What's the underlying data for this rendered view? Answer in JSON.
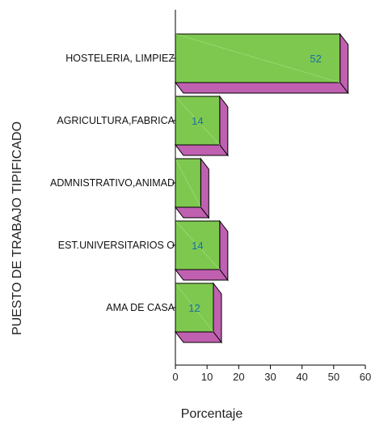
{
  "colors": {
    "bar_front": "#7ec850",
    "bar_side": "#c060b0",
    "value_label": "#1a6fa0",
    "axis": "#000000"
  },
  "chart_data": {
    "type": "bar",
    "orientation": "horizontal",
    "style": "3d",
    "categories": [
      "HOSTELERIA, LIMPIEZ",
      "AGRICULTURA,FABRICA",
      "ADMNISTRATIVO,ANIMAD",
      "EST.UNIVERSITARIOS O",
      "AMA DE CASA"
    ],
    "values": [
      52,
      14,
      8,
      14,
      12
    ],
    "data_labels": [
      "52",
      "14",
      "",
      "14",
      "12"
    ],
    "xlabel": "Porcentaje",
    "ylabel": "PUESTO DE TRABAJO TIPIFICADO",
    "xlim": [
      0,
      60
    ],
    "xticks": [
      0,
      10,
      20,
      30,
      40,
      50,
      60
    ],
    "grid": false,
    "legend": "none"
  }
}
